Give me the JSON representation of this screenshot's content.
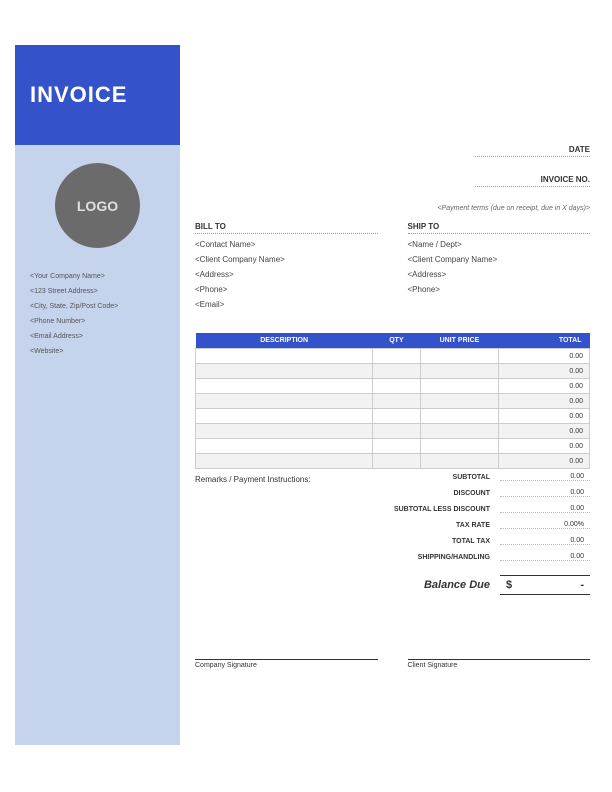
{
  "colors": {
    "primary": "#3452c9",
    "sidebar_bg": "#c5d3ec",
    "logo_bg": "#6b6b6b"
  },
  "header": {
    "title": "INVOICE"
  },
  "logo": {
    "text": "LOGO"
  },
  "company": {
    "name": "<Your Company Name>",
    "address": "<123 Street Address>",
    "city": "<City, State, Zip/Post Code>",
    "phone": "<Phone Number>",
    "email": "<Email Address>",
    "website": "<Website>"
  },
  "meta": {
    "date_label": "DATE",
    "invoice_no_label": "INVOICE NO.",
    "payment_terms": "<Payment terms (due on receipt, due in X days)>"
  },
  "bill_to": {
    "title": "BILL TO",
    "contact": "<Contact Name>",
    "company": "<Client Company Name>",
    "address": "<Address>",
    "phone": "<Phone>",
    "email": "<Email>"
  },
  "ship_to": {
    "title": "SHIP TO",
    "name": "<Name / Dept>",
    "company": "<Client Company Name>",
    "address": "<Address>",
    "phone": "<Phone>"
  },
  "table": {
    "headers": {
      "description": "DESCRIPTION",
      "qty": "QTY",
      "unit_price": "UNIT PRICE",
      "total": "TOTAL"
    },
    "rows": [
      {
        "total": "0.00"
      },
      {
        "total": "0.00"
      },
      {
        "total": "0.00"
      },
      {
        "total": "0.00"
      },
      {
        "total": "0.00"
      },
      {
        "total": "0.00"
      },
      {
        "total": "0.00"
      },
      {
        "total": "0.00"
      }
    ]
  },
  "remarks": {
    "label": "Remarks / Payment Instructions:"
  },
  "totals": {
    "subtotal": {
      "label": "SUBTOTAL",
      "value": "0.00"
    },
    "discount": {
      "label": "DISCOUNT",
      "value": "0.00"
    },
    "subtotal_less": {
      "label": "SUBTOTAL LESS DISCOUNT",
      "value": "0.00"
    },
    "tax_rate": {
      "label": "TAX RATE",
      "value": "0.00%"
    },
    "total_tax": {
      "label": "TOTAL TAX",
      "value": "0.00"
    },
    "shipping": {
      "label": "SHIPPING/HANDLING",
      "value": "0.00"
    },
    "balance_due": {
      "label": "Balance Due",
      "currency": "$",
      "value": "-"
    }
  },
  "signatures": {
    "company": "Company Signature",
    "client": "Client Signature"
  }
}
